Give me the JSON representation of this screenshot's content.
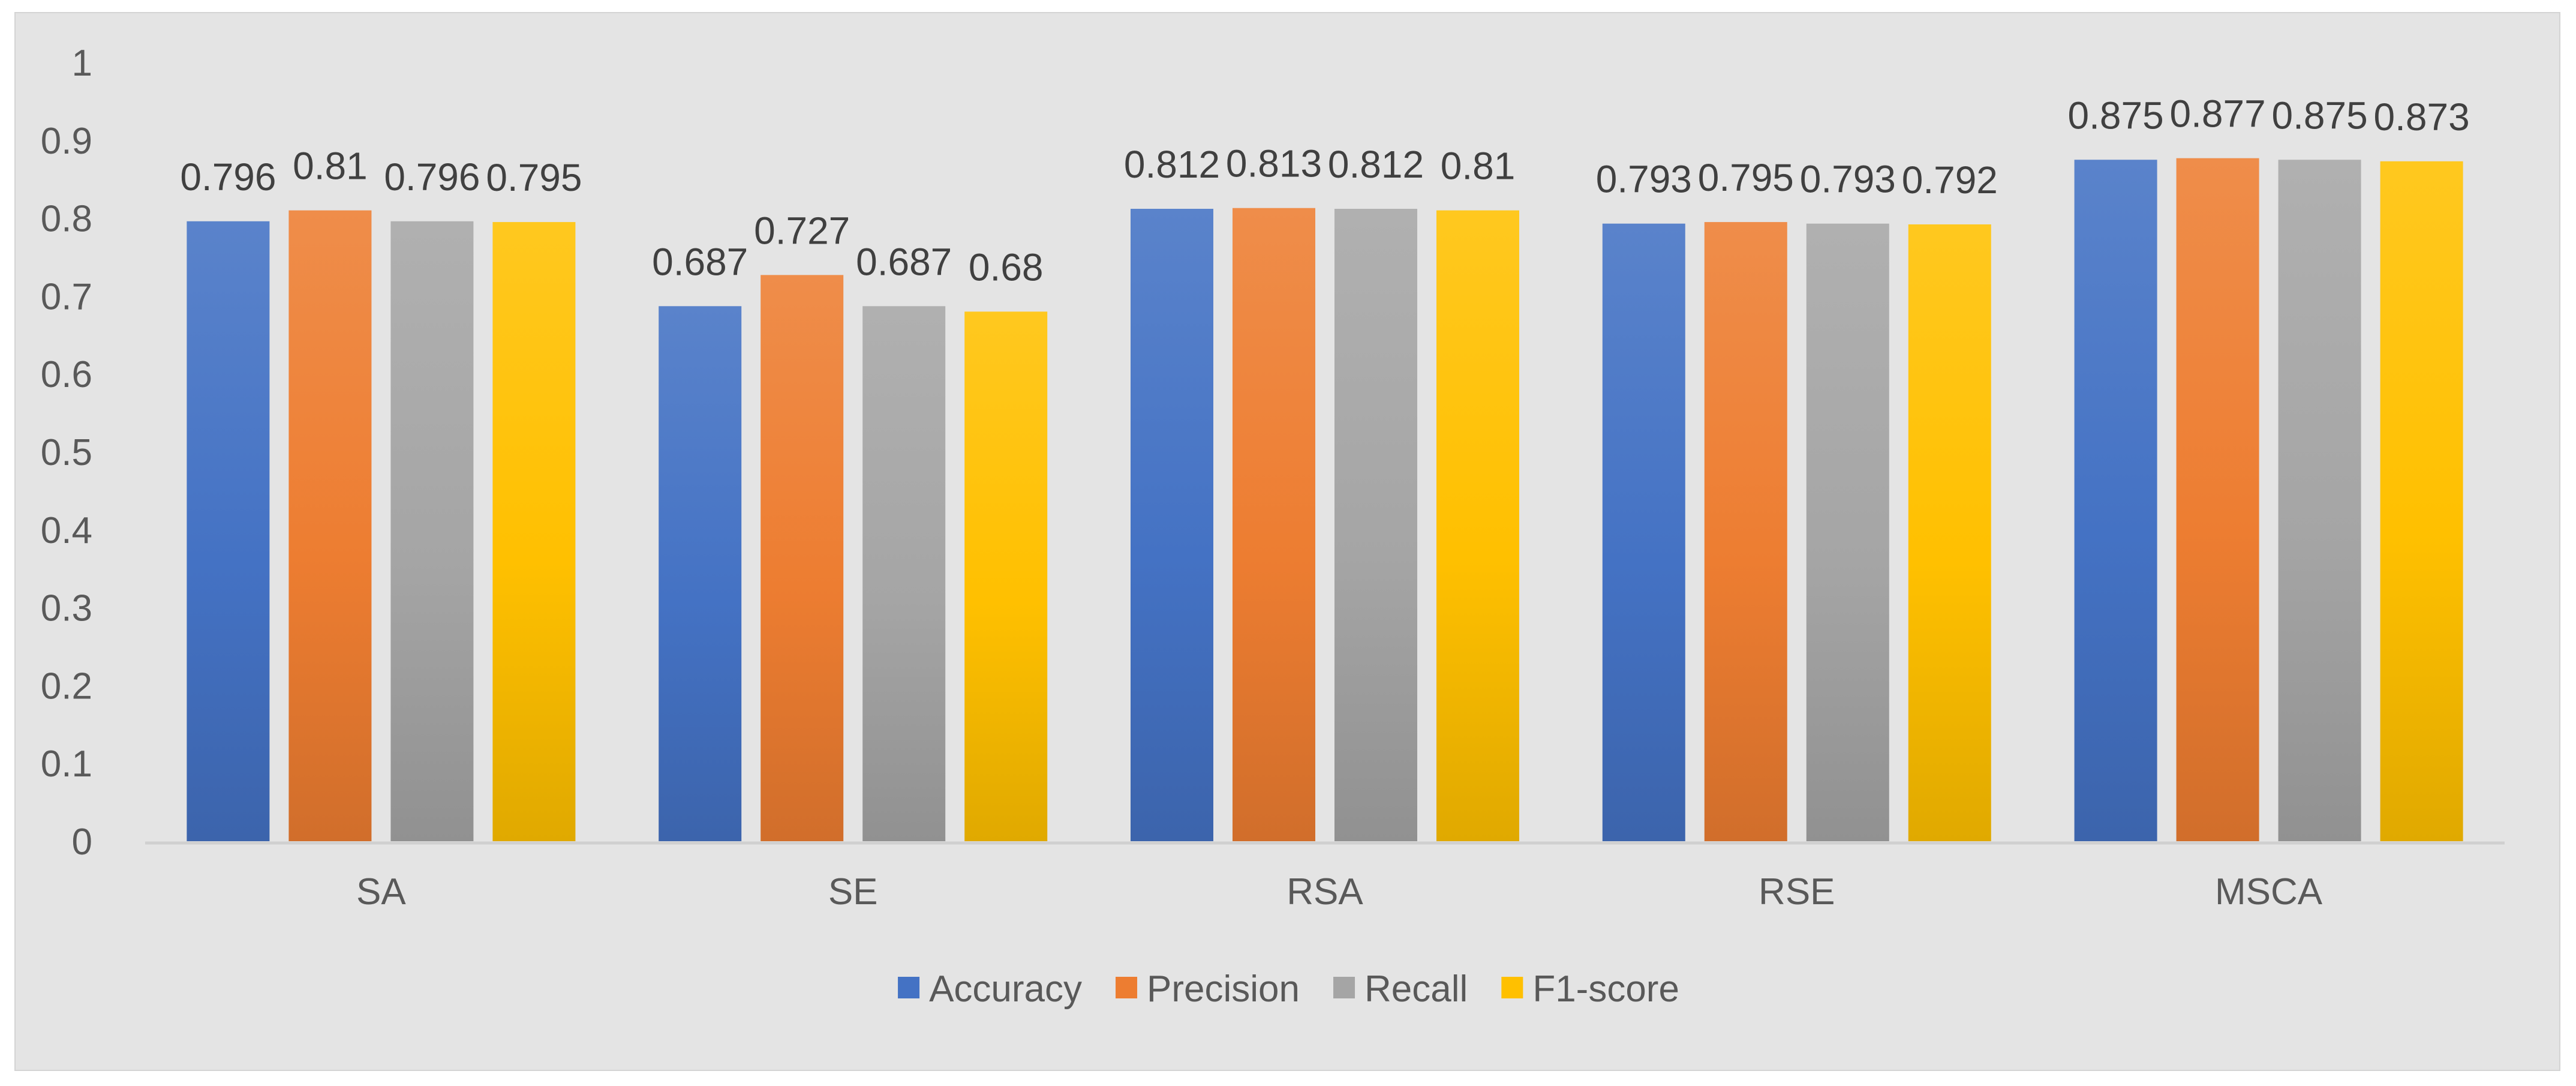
{
  "chart_data": {
    "type": "bar",
    "title": "",
    "xlabel": "",
    "ylabel": "",
    "ylim": [
      0,
      1
    ],
    "yticks": [
      0,
      0.1,
      0.2,
      0.3,
      0.4,
      0.5,
      0.6,
      0.7,
      0.8,
      0.9,
      1
    ],
    "grid": false,
    "legend_position": "bottom",
    "categories": [
      "SA",
      "SE",
      "RSA",
      "RSE",
      "MSCA"
    ],
    "series": [
      {
        "name": "Accuracy",
        "color": "#4472c4",
        "values": [
          0.796,
          0.687,
          0.812,
          0.793,
          0.875
        ]
      },
      {
        "name": "Precision",
        "color": "#ed7d31",
        "values": [
          0.81,
          0.727,
          0.813,
          0.795,
          0.877
        ]
      },
      {
        "name": "Recall",
        "color": "#a5a5a5",
        "values": [
          0.796,
          0.687,
          0.812,
          0.793,
          0.875
        ]
      },
      {
        "name": "F1-score",
        "color": "#ffc000",
        "values": [
          0.795,
          0.68,
          0.81,
          0.792,
          0.873
        ]
      }
    ]
  }
}
